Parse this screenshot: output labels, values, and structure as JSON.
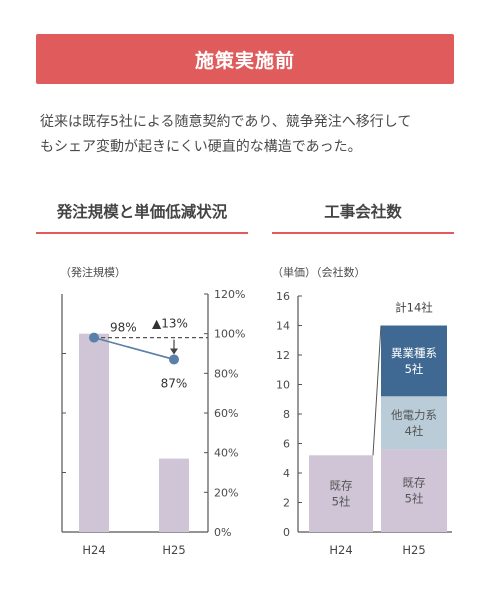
{
  "header": {
    "title": "施策実施前"
  },
  "intro": {
    "line1": "従来は既存5社による随意契約であり、競争発注へ移行して",
    "line2": "もシェア変動が起きにくい硬直的な構造であった。"
  },
  "colors": {
    "accent": "#e05b5b",
    "bar_lavender": "#cfc5d7",
    "line_blue": "#5a7fa8",
    "dark_blue": "#3f6992",
    "light_blue": "#b9ccd8",
    "axis": "#555555"
  },
  "chart_data": [
    {
      "type": "bar",
      "section_title": "発注規模と単価低減状況",
      "left_axis_caption": "（発注規模）",
      "categories": [
        "H24",
        "H25"
      ],
      "bar_values": [
        1.0,
        0.37
      ],
      "right_axis": {
        "ylim": [
          0,
          120
        ],
        "ticks": [
          "0%",
          "20%",
          "40%",
          "60%",
          "80%",
          "100%",
          "120%"
        ]
      },
      "line": {
        "values": [
          98,
          87
        ],
        "labels": [
          "98%",
          "87%"
        ]
      },
      "reference_value": 98,
      "annotation": {
        "arrow": "▲",
        "text": "13%"
      }
    },
    {
      "type": "bar",
      "section_title": "工事会社数",
      "left_axis_caption": "（単価）（会社数）",
      "categories": [
        "H24",
        "H25"
      ],
      "ylim": [
        0,
        16
      ],
      "yticks": [
        "0",
        "2",
        "4",
        "6",
        "8",
        "10",
        "12",
        "14",
        "16"
      ],
      "stacks": [
        {
          "category": "H24",
          "segments": [
            {
              "label": "既存\n5社",
              "value": 5.2,
              "color": "#cfc5d7"
            }
          ]
        },
        {
          "category": "H25",
          "segments": [
            {
              "label": "既存\n5社",
              "value": 5.6,
              "color": "#cfc5d7"
            },
            {
              "label": "他電力系\n4社",
              "value": 3.6,
              "color": "#b9ccd8"
            },
            {
              "label": "異業種系\n5社",
              "value": 4.8,
              "color": "#3f6992"
            }
          ]
        }
      ],
      "total_label": "計14社"
    }
  ]
}
